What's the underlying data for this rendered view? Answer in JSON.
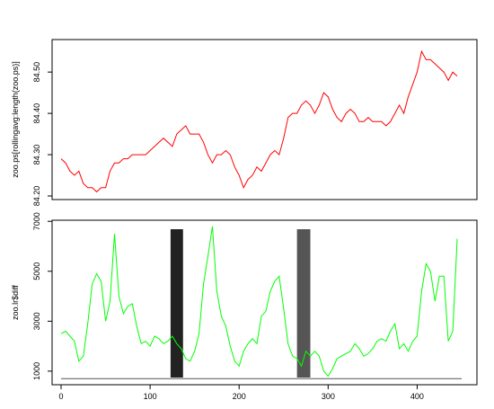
{
  "chart_data": [
    {
      "type": "line",
      "ylabel": "zoo.ps[rollingavg:length(zoo.ps)]",
      "xlim": [
        0,
        450
      ],
      "ylim": [
        84.2,
        84.57
      ],
      "yticks": [
        "84.20",
        "84.30",
        "84.40",
        "84.50"
      ],
      "grid": false,
      "series": [
        {
          "color": "#ff0000",
          "x": [
            0,
            5,
            10,
            15,
            20,
            25,
            30,
            35,
            40,
            45,
            50,
            55,
            60,
            65,
            70,
            75,
            80,
            85,
            90,
            95,
            100,
            105,
            110,
            115,
            120,
            125,
            130,
            135,
            140,
            145,
            150,
            155,
            160,
            165,
            170,
            175,
            180,
            185,
            190,
            195,
            200,
            205,
            210,
            215,
            220,
            225,
            230,
            235,
            240,
            245,
            250,
            255,
            260,
            265,
            270,
            275,
            280,
            285,
            290,
            295,
            300,
            305,
            310,
            315,
            320,
            325,
            330,
            335,
            340,
            345,
            350,
            355,
            360,
            365,
            370,
            375,
            380,
            385,
            390,
            395,
            400,
            405,
            410,
            415,
            420,
            425,
            430,
            435,
            440,
            445
          ],
          "y": [
            84.29,
            84.28,
            84.26,
            84.25,
            84.26,
            84.23,
            84.22,
            84.22,
            84.21,
            84.22,
            84.22,
            84.26,
            84.28,
            84.28,
            84.29,
            84.29,
            84.3,
            84.3,
            84.3,
            84.3,
            84.31,
            84.32,
            84.33,
            84.34,
            84.33,
            84.32,
            84.35,
            84.36,
            84.37,
            84.35,
            84.35,
            84.35,
            84.33,
            84.3,
            84.28,
            84.3,
            84.3,
            84.31,
            84.3,
            84.27,
            84.25,
            84.22,
            84.24,
            84.25,
            84.27,
            84.26,
            84.28,
            84.3,
            84.31,
            84.3,
            84.34,
            84.39,
            84.4,
            84.4,
            84.42,
            84.43,
            84.42,
            84.4,
            84.42,
            84.45,
            84.44,
            84.41,
            84.39,
            84.38,
            84.4,
            84.41,
            84.4,
            84.38,
            84.38,
            84.39,
            84.38,
            84.38,
            84.38,
            84.37,
            84.38,
            84.4,
            84.42,
            84.4,
            84.44,
            84.47,
            84.5,
            84.55,
            84.53,
            84.53,
            84.52,
            84.51,
            84.5,
            84.48,
            84.5,
            84.49
          ]
        }
      ]
    },
    {
      "type": "line",
      "ylabel": "zoo.lr$diff",
      "xlim": [
        0,
        450
      ],
      "ylim": [
        600,
        6900
      ],
      "yticks": [
        "1000",
        "3000",
        "5000",
        "7000"
      ],
      "xticks": [
        "0",
        "100",
        "200",
        "300",
        "400"
      ],
      "grid": false,
      "series": [
        {
          "color": "#00ff00",
          "x": [
            0,
            5,
            10,
            15,
            20,
            25,
            30,
            35,
            40,
            45,
            50,
            55,
            60,
            65,
            70,
            75,
            80,
            85,
            90,
            95,
            100,
            105,
            110,
            115,
            120,
            125,
            130,
            135,
            140,
            145,
            150,
            155,
            160,
            165,
            170,
            175,
            180,
            185,
            190,
            195,
            200,
            205,
            210,
            215,
            220,
            225,
            230,
            235,
            240,
            245,
            250,
            255,
            260,
            265,
            270,
            275,
            280,
            285,
            290,
            295,
            300,
            305,
            310,
            315,
            320,
            325,
            330,
            335,
            340,
            345,
            350,
            355,
            360,
            365,
            370,
            375,
            380,
            385,
            390,
            395,
            400,
            405,
            410,
            415,
            420,
            425,
            430,
            435,
            440,
            445
          ],
          "y": [
            2500,
            2600,
            2400,
            2200,
            1400,
            1600,
            2900,
            4500,
            4900,
            4600,
            3000,
            3800,
            6500,
            4000,
            3300,
            3600,
            3700,
            2800,
            2100,
            2200,
            2000,
            2400,
            2300,
            2100,
            2200,
            2400,
            2100,
            1900,
            1500,
            1400,
            1800,
            2500,
            4500,
            5600,
            6800,
            4200,
            3200,
            2800,
            2000,
            1400,
            1200,
            1800,
            2100,
            2300,
            2100,
            3200,
            3400,
            4200,
            4600,
            4800,
            3500,
            2100,
            1600,
            1500,
            1200,
            1800,
            1600,
            1800,
            1600,
            1000,
            800,
            1100,
            1500,
            1600,
            1700,
            1800,
            2100,
            1900,
            1600,
            1700,
            1900,
            2200,
            2300,
            2200,
            2600,
            2900,
            1900,
            2100,
            1800,
            2200,
            2400,
            4200,
            5300,
            5000,
            3800,
            4800,
            4800,
            2200,
            2600,
            6300
          ]
        }
      ],
      "shaded_ranges": [
        {
          "x": [
            123,
            137
          ],
          "color": "#222222"
        },
        {
          "x": [
            265,
            280
          ],
          "color": "#555555"
        }
      ],
      "baseline": 700
    }
  ]
}
